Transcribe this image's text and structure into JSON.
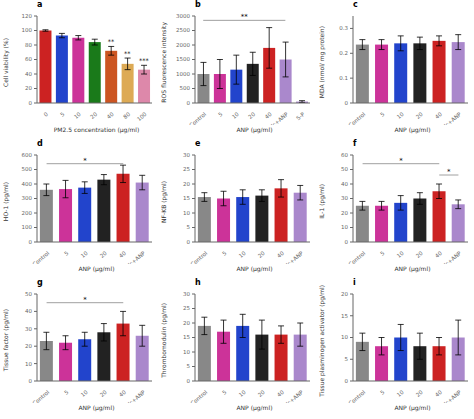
{
  "chart_data": [
    {
      "type": "bar",
      "title": "a",
      "categories": [
        "0",
        "5",
        "10",
        "20",
        "40",
        "80",
        "100"
      ],
      "values": [
        100,
        93,
        90,
        84,
        72,
        54,
        46
      ],
      "errors": [
        1,
        3,
        3,
        4,
        6,
        8,
        6
      ],
      "colors": [
        "#cc2222",
        "#2244cc",
        "#cc3399",
        "#1a7a1a",
        "#cc5522",
        "#ddaa55",
        "#dd88aa"
      ],
      "ylabel": "Cell viability (%)",
      "xlabel": "PM2.5 concentration (μg/ml)",
      "ylim": [
        0,
        120
      ],
      "yticks": [
        0,
        20,
        40,
        60,
        80,
        100,
        120
      ],
      "grid": false,
      "annotations": [
        {
          "text": "**",
          "category": "40"
        },
        {
          "text": "**",
          "category": "80"
        },
        {
          "text": "***",
          "category": "100"
        }
      ]
    },
    {
      "type": "bar",
      "title": "b",
      "categories": [
        "Control",
        "5",
        "10",
        "20",
        "40",
        "Vc+ANP",
        "S-P"
      ],
      "values": [
        1000,
        1000,
        1150,
        1350,
        1900,
        1500,
        50
      ],
      "errors": [
        400,
        500,
        500,
        400,
        700,
        600,
        30
      ],
      "colors": [
        "#888888",
        "#cc3399",
        "#2244cc",
        "#222222",
        "#cc2222",
        "#aa88cc",
        "#aa88cc"
      ],
      "ylabel": "ROS fluorescence intensity",
      "xlabel": "ANP (μg/ml)",
      "ylim": [
        0,
        3000
      ],
      "yticks": [
        0,
        500,
        1000,
        1500,
        2000,
        2500,
        3000
      ],
      "grid": false,
      "annotations": [
        {
          "text": "**",
          "from": "Control",
          "to": "Vc+ANP",
          "y": 2850
        }
      ]
    },
    {
      "type": "bar",
      "title": "c",
      "categories": [
        "Control",
        "5",
        "10",
        "20",
        "40",
        "Vc+ANP"
      ],
      "values": [
        0.235,
        0.235,
        0.24,
        0.24,
        0.25,
        0.245
      ],
      "errors": [
        0.02,
        0.02,
        0.03,
        0.025,
        0.02,
        0.03
      ],
      "colors": [
        "#888888",
        "#cc3399",
        "#2244cc",
        "#222222",
        "#cc2222",
        "#aa88cc"
      ],
      "ylabel": "MDA (nmol/ mg protein)",
      "xlabel": "ANP (μg/ml)",
      "ylim": [
        0,
        0.35
      ],
      "yticks": [
        0,
        0.1,
        0.2,
        0.3
      ],
      "grid": false,
      "annotations": []
    },
    {
      "type": "bar",
      "title": "d",
      "categories": [
        "Control",
        "5",
        "10",
        "20",
        "40",
        "Vc+ANP"
      ],
      "values": [
        360,
        365,
        375,
        430,
        470,
        410
      ],
      "errors": [
        40,
        60,
        40,
        35,
        60,
        50
      ],
      "colors": [
        "#888888",
        "#cc3399",
        "#2244cc",
        "#222222",
        "#cc2222",
        "#aa88cc"
      ],
      "ylabel": "HO-1 (pg/ml)",
      "xlabel": "ANP (μg/ml)",
      "ylim": [
        0,
        600
      ],
      "yticks": [
        0,
        100,
        200,
        300,
        400,
        500,
        600
      ],
      "grid": false,
      "annotations": [
        {
          "text": "*",
          "from": "Control",
          "to": "40",
          "y": 540
        }
      ]
    },
    {
      "type": "bar",
      "title": "e",
      "categories": [
        "Control",
        "5",
        "10",
        "20",
        "40",
        "Vc+ANP"
      ],
      "values": [
        15.5,
        15.0,
        15.5,
        16.0,
        18.5,
        17.0
      ],
      "errors": [
        1.5,
        2.5,
        2.5,
        2.0,
        3.0,
        2.5
      ],
      "colors": [
        "#888888",
        "#cc3399",
        "#2244cc",
        "#222222",
        "#cc2222",
        "#aa88cc"
      ],
      "ylabel": "NF-KB (pg/ml)",
      "xlabel": "ANP (μg/ml)",
      "ylim": [
        0,
        30
      ],
      "yticks": [
        0,
        5,
        10,
        15,
        20,
        25,
        30
      ],
      "grid": false,
      "annotations": []
    },
    {
      "type": "bar",
      "title": "f",
      "categories": [
        "Control",
        "5",
        "10",
        "20",
        "40",
        "Vc+ANP"
      ],
      "values": [
        25,
        25,
        27,
        30,
        35,
        26
      ],
      "errors": [
        3,
        3,
        5,
        4,
        5,
        3
      ],
      "colors": [
        "#888888",
        "#cc3399",
        "#2244cc",
        "#222222",
        "#cc2222",
        "#aa88cc"
      ],
      "ylabel": "IL-1 (pg/ml)",
      "xlabel": "ANP (μg/ml)",
      "ylim": [
        0,
        60
      ],
      "yticks": [
        0,
        10,
        20,
        30,
        40,
        50,
        60
      ],
      "grid": false,
      "annotations": [
        {
          "text": "*",
          "from": "Control",
          "to": "40",
          "y": 54
        },
        {
          "text": "*",
          "from": "40",
          "to": "Vc+ANP",
          "y": 46.2
        }
      ]
    },
    {
      "type": "bar",
      "title": "g",
      "categories": [
        "Control",
        "5",
        "10",
        "20",
        "40",
        "Vc+ANP"
      ],
      "values": [
        23,
        22,
        24,
        28,
        33,
        26
      ],
      "errors": [
        5,
        4,
        4,
        5,
        7,
        6
      ],
      "colors": [
        "#888888",
        "#cc3399",
        "#2244cc",
        "#222222",
        "#cc2222",
        "#aa88cc"
      ],
      "ylabel": "Tissue factor (pg/ml)",
      "xlabel": "ANP (μg/ml)",
      "ylim": [
        0,
        50
      ],
      "yticks": [
        0,
        10,
        20,
        30,
        40,
        50
      ],
      "grid": false,
      "annotations": [
        {
          "text": "*",
          "from": "Control",
          "to": "40",
          "y": 45
        }
      ]
    },
    {
      "type": "bar",
      "title": "h",
      "categories": [
        "Control",
        "5",
        "10",
        "20",
        "40",
        "Vc+ANP"
      ],
      "values": [
        19,
        17,
        19,
        16,
        16,
        16
      ],
      "errors": [
        3,
        4,
        4,
        5,
        3,
        4
      ],
      "colors": [
        "#888888",
        "#cc3399",
        "#2244cc",
        "#222222",
        "#cc2222",
        "#aa88cc"
      ],
      "ylabel": "Thrombomodulin (pg/ml)",
      "xlabel": "ANP (μg/ml)",
      "ylim": [
        0,
        30
      ],
      "yticks": [
        0,
        5,
        10,
        15,
        20,
        25,
        30
      ],
      "grid": false,
      "annotations": []
    },
    {
      "type": "bar",
      "title": "i",
      "categories": [
        "Control",
        "5",
        "10",
        "20",
        "40",
        "Vc+ANP"
      ],
      "values": [
        9,
        8,
        10,
        8,
        8,
        10
      ],
      "errors": [
        2,
        2,
        3,
        3,
        2,
        4
      ],
      "colors": [
        "#888888",
        "#cc3399",
        "#2244cc",
        "#222222",
        "#cc2222",
        "#aa88cc"
      ],
      "ylabel": "Tissue plasminogen activator (pg/ml)",
      "xlabel": "ANP (μg/ml)",
      "ylim": [
        0,
        20
      ],
      "yticks": [
        0,
        5,
        10,
        15,
        20
      ],
      "grid": false,
      "annotations": []
    }
  ]
}
